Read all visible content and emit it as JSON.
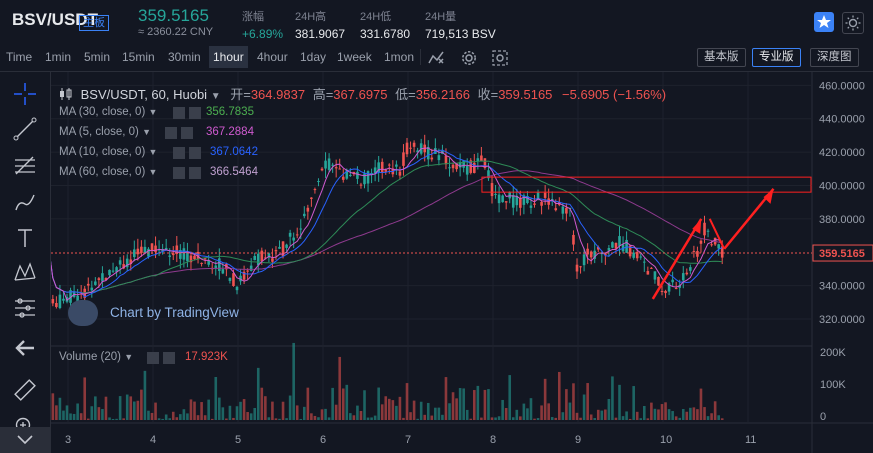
{
  "header": {
    "pair": "BSV/USDT",
    "tag": "主板",
    "price": "359.5165",
    "cny": "≈ 2360.22 CNY",
    "stats": [
      {
        "label": "涨幅",
        "value": "+6.89%"
      },
      {
        "label": "24H高",
        "value": "381.9067"
      },
      {
        "label": "24H低",
        "value": "331.6780"
      },
      {
        "label": "24H量",
        "value": "719,513 BSV"
      }
    ]
  },
  "toolbar": {
    "timeframes": [
      "Time",
      "1min",
      "5min",
      "15min",
      "30min",
      "1hour",
      "4hour",
      "1day",
      "1week",
      "1mon"
    ],
    "active_timeframe": "1hour",
    "versions": [
      "基本版",
      "专业版",
      "深度图"
    ],
    "active_version": "专业版"
  },
  "legend": {
    "symbol": "BSV/USDT, 60, Huobi",
    "open_label": "开=",
    "open": "364.9837",
    "high_label": "高=",
    "high": "367.6975",
    "low_label": "低=",
    "low": "356.2166",
    "close_label": "收=",
    "close": "359.5165",
    "change": "−5.6905 (−1.56%)"
  },
  "ma": [
    {
      "label": "MA (30, close, 0)",
      "value": "356.7835",
      "color": "#4caf50"
    },
    {
      "label": "MA (5, close, 0)",
      "value": "367.2884",
      "color": "#d05ad0"
    },
    {
      "label": "MA (10, close, 0)",
      "value": "367.0642",
      "color": "#2962ff"
    },
    {
      "label": "MA (60, close, 0)",
      "value": "366.5464",
      "color": "#c0a0d0"
    }
  ],
  "watermark": "Chart by TradingView",
  "volume": {
    "label": "Volume (20)",
    "value": "17.923K"
  },
  "chart_data": {
    "type": "candlestick",
    "price_axis": [
      "460.0000",
      "440.0000",
      "420.0000",
      "400.0000",
      "380.0000",
      "359.5165",
      "340.0000",
      "320.0000"
    ],
    "last_price": "359.5165",
    "volume_axis": [
      "200K",
      "100K",
      "0"
    ],
    "x_ticks": [
      "3",
      "4",
      "5",
      "6",
      "7",
      "8",
      "9",
      "10",
      "11"
    ],
    "ylim": [
      305,
      468
    ],
    "colors": {
      "up": "#26a69a",
      "down": "#ef5350",
      "annotation": "#ff2020"
    },
    "trend": [
      [
        2.8,
        328
      ],
      [
        3.0,
        333
      ],
      [
        3.2,
        336
      ],
      [
        3.5,
        350
      ],
      [
        3.8,
        358
      ],
      [
        4.1,
        363
      ],
      [
        4.4,
        358
      ],
      [
        4.8,
        353
      ],
      [
        5.0,
        340
      ],
      [
        5.2,
        356
      ],
      [
        5.5,
        360
      ],
      [
        5.8,
        380
      ],
      [
        6.0,
        415
      ],
      [
        6.2,
        408
      ],
      [
        6.5,
        403
      ],
      [
        6.7,
        412
      ],
      [
        6.9,
        408
      ],
      [
        7.0,
        425
      ],
      [
        7.2,
        420
      ],
      [
        7.4,
        418
      ],
      [
        7.6,
        410
      ],
      [
        7.8,
        412
      ],
      [
        7.9,
        415
      ],
      [
        8.0,
        395
      ],
      [
        8.3,
        390
      ],
      [
        8.6,
        392
      ],
      [
        8.9,
        386
      ],
      [
        9.0,
        345
      ],
      [
        9.1,
        358
      ],
      [
        9.3,
        362
      ],
      [
        9.5,
        366
      ],
      [
        9.7,
        358
      ],
      [
        9.9,
        345
      ],
      [
        10.0,
        338
      ],
      [
        10.2,
        340
      ],
      [
        10.4,
        360
      ],
      [
        10.5,
        375
      ],
      [
        10.6,
        365
      ],
      [
        10.7,
        359.5
      ]
    ]
  }
}
